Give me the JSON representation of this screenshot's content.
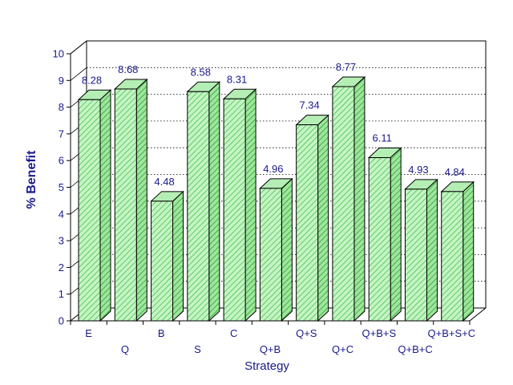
{
  "chart_data": {
    "type": "bar",
    "title": "",
    "xlabel": "Strategy",
    "ylabel": "% Benefit",
    "ylim": [
      0,
      10
    ],
    "yticks": [
      0,
      1,
      2,
      3,
      4,
      5,
      6,
      7,
      8,
      9,
      10
    ],
    "grid": "horizontal-dotted",
    "style": "3d-bars",
    "colors": {
      "bar_front": "#b8f0b8",
      "bar_stripe": "#3cb43c",
      "bar_side": "#8ee08e",
      "bar_top": "#a8eca8",
      "text": "#1a1a8c"
    },
    "categories": [
      "E",
      "Q",
      "B",
      "S",
      "C",
      "Q+B",
      "Q+S",
      "Q+C",
      "Q+B+S",
      "Q+B+C",
      "Q+B+S+C"
    ],
    "values": [
      8.28,
      8.68,
      4.48,
      8.58,
      8.31,
      4.96,
      7.34,
      8.77,
      6.11,
      4.93,
      4.84
    ],
    "value_labels": [
      "8.28",
      "8.68",
      "4.48",
      "8.58",
      "8.31",
      "4.96",
      "7.34",
      "8.77",
      "6.11",
      "4.93",
      "4.84"
    ]
  }
}
